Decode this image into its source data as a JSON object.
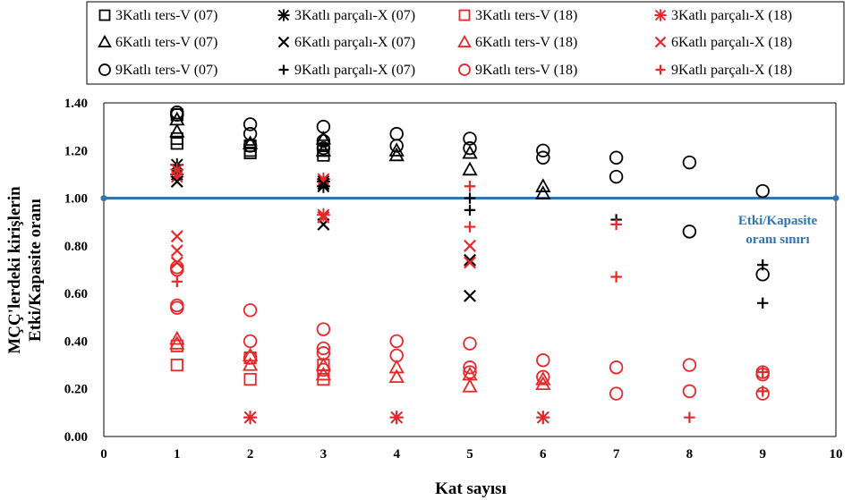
{
  "chart_data": {
    "type": "scatter",
    "title": "",
    "xlabel": "Kat sayısı",
    "ylabel_lines": [
      "MÇÇ'lerdeki kirişlerin",
      "Etki/Kapasite oranı"
    ],
    "xlim": [
      0,
      10
    ],
    "ylim": [
      0,
      1.4
    ],
    "x_ticks": [
      "0",
      "1",
      "2",
      "3",
      "4",
      "5",
      "6",
      "7",
      "8",
      "9",
      "10"
    ],
    "y_ticks": [
      "0.00",
      "0.20",
      "0.40",
      "0.60",
      "0.80",
      "1.00",
      "1.20",
      "1.40"
    ],
    "legend_placement": "top",
    "reference_line": {
      "y": 1.0,
      "label_lines": [
        "Etki/Kapasite",
        "oranı sınırı"
      ],
      "color": "#2e75b6"
    },
    "series": [
      {
        "name": "3Katlı ters-V (07)",
        "marker": "square",
        "color": "#000000",
        "points": [
          [
            1,
            1.25
          ],
          [
            1,
            1.23
          ],
          [
            1,
            1.35
          ],
          [
            2,
            1.22
          ],
          [
            2,
            1.2
          ],
          [
            2,
            1.19
          ],
          [
            3,
            1.2
          ],
          [
            3,
            1.18
          ],
          [
            3,
            1.22
          ]
        ]
      },
      {
        "name": "3Katlı parçalı-X (07)",
        "marker": "asterisk",
        "color": "#000000",
        "points": [
          [
            1,
            1.14
          ],
          [
            1,
            1.1
          ],
          [
            2,
            0.08
          ],
          [
            3,
            1.07
          ],
          [
            3,
            1.05
          ],
          [
            4,
            0.08
          ],
          [
            6,
            0.08
          ]
        ]
      },
      {
        "name": "3Katlı ters-V (18)",
        "marker": "square",
        "color": "#e8272a",
        "points": [
          [
            1,
            0.38
          ],
          [
            1,
            0.3
          ],
          [
            2,
            0.33
          ],
          [
            2,
            0.24
          ],
          [
            3,
            0.3
          ],
          [
            3,
            0.24
          ]
        ]
      },
      {
        "name": "3Katlı parçalı-X (18)",
        "marker": "asterisk",
        "color": "#e8272a",
        "points": [
          [
            1,
            1.12
          ],
          [
            1,
            1.09
          ],
          [
            2,
            0.08
          ],
          [
            3,
            1.08
          ],
          [
            3,
            0.93
          ],
          [
            4,
            0.08
          ],
          [
            6,
            0.08
          ]
        ]
      },
      {
        "name": "6Katlı ters-V (07)",
        "marker": "triangle",
        "color": "#000000",
        "points": [
          [
            1,
            1.33
          ],
          [
            1,
            1.28
          ],
          [
            2,
            1.23
          ],
          [
            3,
            1.25
          ],
          [
            3,
            1.2
          ],
          [
            4,
            1.2
          ],
          [
            4,
            1.18
          ],
          [
            5,
            1.19
          ],
          [
            5,
            1.12
          ],
          [
            6,
            1.05
          ],
          [
            6,
            1.02
          ]
        ]
      },
      {
        "name": "6Katlı parçalı-X (07)",
        "marker": "x",
        "color": "#000000",
        "points": [
          [
            1,
            1.07
          ],
          [
            3,
            0.89
          ],
          [
            3,
            1.06
          ],
          [
            5,
            0.74
          ],
          [
            5,
            0.59
          ]
        ]
      },
      {
        "name": "6Katlı ters-V (18)",
        "marker": "triangle",
        "color": "#e8272a",
        "points": [
          [
            1,
            0.41
          ],
          [
            1,
            0.39
          ],
          [
            2,
            0.3
          ],
          [
            2,
            0.34
          ],
          [
            3,
            0.3
          ],
          [
            3,
            0.26
          ],
          [
            4,
            0.29
          ],
          [
            4,
            0.25
          ],
          [
            5,
            0.26
          ],
          [
            5,
            0.21
          ],
          [
            6,
            0.24
          ],
          [
            6,
            0.22
          ]
        ]
      },
      {
        "name": "6Katlı parçalı-X (18)",
        "marker": "x",
        "color": "#e8272a",
        "points": [
          [
            1,
            0.84
          ],
          [
            1,
            0.78
          ],
          [
            1,
            0.73
          ],
          [
            3,
            0.92
          ],
          [
            3,
            0.92
          ],
          [
            5,
            0.8
          ],
          [
            5,
            0.73
          ]
        ]
      },
      {
        "name": "9Katlı ters-V (07)",
        "marker": "circle",
        "color": "#000000",
        "points": [
          [
            1,
            1.36
          ],
          [
            1,
            1.35
          ],
          [
            2,
            1.31
          ],
          [
            2,
            1.27
          ],
          [
            2,
            1.22
          ],
          [
            3,
            1.3
          ],
          [
            3,
            1.24
          ],
          [
            3,
            1.21
          ],
          [
            4,
            1.27
          ],
          [
            4,
            1.22
          ],
          [
            5,
            1.25
          ],
          [
            5,
            1.21
          ],
          [
            6,
            1.2
          ],
          [
            6,
            1.17
          ],
          [
            7,
            1.17
          ],
          [
            7,
            1.09
          ],
          [
            8,
            1.15
          ],
          [
            8,
            0.86
          ],
          [
            9,
            1.03
          ],
          [
            9,
            0.68
          ]
        ]
      },
      {
        "name": "9Katlı parçalı-X (07)",
        "marker": "plus",
        "color": "#000000",
        "points": [
          [
            5,
            1.0
          ],
          [
            5,
            0.95
          ],
          [
            7,
            0.91
          ],
          [
            9,
            0.72
          ],
          [
            9,
            0.56
          ]
        ]
      },
      {
        "name": "9Katlı ters-V (18)",
        "marker": "circle",
        "color": "#e8272a",
        "points": [
          [
            1,
            0.71
          ],
          [
            1,
            0.7
          ],
          [
            1,
            0.55
          ],
          [
            1,
            0.54
          ],
          [
            2,
            0.53
          ],
          [
            2,
            0.4
          ],
          [
            2,
            0.33
          ],
          [
            3,
            0.45
          ],
          [
            3,
            0.37
          ],
          [
            3,
            0.35
          ],
          [
            3,
            0.28
          ],
          [
            4,
            0.4
          ],
          [
            4,
            0.34
          ],
          [
            5,
            0.39
          ],
          [
            5,
            0.29
          ],
          [
            5,
            0.27
          ],
          [
            6,
            0.32
          ],
          [
            6,
            0.25
          ],
          [
            7,
            0.29
          ],
          [
            7,
            0.18
          ],
          [
            8,
            0.3
          ],
          [
            8,
            0.19
          ],
          [
            9,
            0.27
          ],
          [
            9,
            0.26
          ],
          [
            9,
            0.18
          ]
        ]
      },
      {
        "name": "9Katlı parçalı-X (18)",
        "marker": "plus",
        "color": "#e8272a",
        "points": [
          [
            1,
            0.65
          ],
          [
            5,
            1.05
          ],
          [
            5,
            0.88
          ],
          [
            7,
            0.89
          ],
          [
            7,
            0.67
          ],
          [
            8,
            0.08
          ],
          [
            9,
            0.27
          ],
          [
            9,
            0.19
          ]
        ]
      }
    ]
  }
}
